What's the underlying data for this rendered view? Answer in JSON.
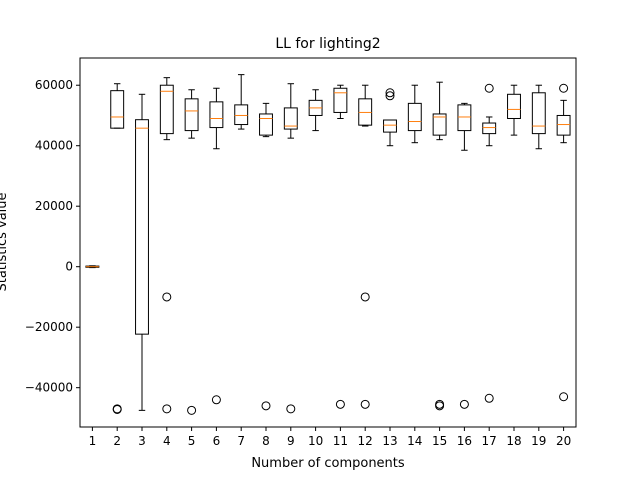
{
  "chart_data": {
    "type": "box",
    "title": "LL for lighting2",
    "xlabel": "Number of components",
    "ylabel": "Statistics value",
    "ylim": [
      -53000,
      69000
    ],
    "yticks": [
      -40000,
      -20000,
      0,
      20000,
      40000,
      60000
    ],
    "ytick_labels": [
      "−40000",
      "−20000",
      "0",
      "20000",
      "40000",
      "60000"
    ],
    "categories": [
      "1",
      "2",
      "3",
      "4",
      "5",
      "6",
      "7",
      "8",
      "9",
      "10",
      "11",
      "12",
      "13",
      "14",
      "15",
      "16",
      "17",
      "18",
      "19",
      "20"
    ],
    "colors": {
      "box": "#000000",
      "median": "#ff7f0e",
      "flier": "#000000"
    },
    "boxes": [
      {
        "label": "1",
        "whislo": -300,
        "q1": -200,
        "med": 0,
        "q3": 200,
        "whishi": 300,
        "fliers": []
      },
      {
        "label": "2",
        "whislo": 45800,
        "q1": 45800,
        "med": 49500,
        "q3": 58200,
        "whishi": 60500,
        "fliers": [
          -47000,
          -47200
        ]
      },
      {
        "label": "3",
        "whislo": -47500,
        "q1": -22300,
        "med": 45800,
        "q3": 48600,
        "whishi": 57000,
        "fliers": []
      },
      {
        "label": "4",
        "whislo": 42000,
        "q1": 44000,
        "med": 58000,
        "q3": 60000,
        "whishi": 62500,
        "fliers": [
          -10000,
          -47000
        ]
      },
      {
        "label": "5",
        "whislo": 42500,
        "q1": 45000,
        "med": 51500,
        "q3": 55500,
        "whishi": 58500,
        "fliers": [
          -47500
        ]
      },
      {
        "label": "6",
        "whislo": 39000,
        "q1": 46000,
        "med": 49000,
        "q3": 54500,
        "whishi": 59000,
        "fliers": [
          -44000
        ]
      },
      {
        "label": "7",
        "whislo": 45500,
        "q1": 47000,
        "med": 50000,
        "q3": 53500,
        "whishi": 63500,
        "fliers": []
      },
      {
        "label": "8",
        "whislo": 43000,
        "q1": 43500,
        "med": 49000,
        "q3": 50500,
        "whishi": 54000,
        "fliers": [
          -46000
        ]
      },
      {
        "label": "9",
        "whislo": 42500,
        "q1": 45500,
        "med": 46500,
        "q3": 52500,
        "whishi": 60500,
        "fliers": [
          -47000
        ]
      },
      {
        "label": "10",
        "whislo": 45000,
        "q1": 50000,
        "med": 52500,
        "q3": 55000,
        "whishi": 58500,
        "fliers": []
      },
      {
        "label": "11",
        "whislo": 49000,
        "q1": 51000,
        "med": 57500,
        "q3": 59000,
        "whishi": 60000,
        "fliers": [
          -45500
        ]
      },
      {
        "label": "12",
        "whislo": 46500,
        "q1": 46800,
        "med": 51000,
        "q3": 55500,
        "whishi": 60000,
        "fliers": [
          -10000,
          -45500
        ]
      },
      {
        "label": "13",
        "whislo": 40000,
        "q1": 44500,
        "med": 46800,
        "q3": 48500,
        "whishi": 48500,
        "fliers": [
          56500,
          57500
        ]
      },
      {
        "label": "14",
        "whislo": 41000,
        "q1": 45000,
        "med": 48000,
        "q3": 54000,
        "whishi": 60000,
        "fliers": []
      },
      {
        "label": "15",
        "whislo": 42000,
        "q1": 43500,
        "med": 49500,
        "q3": 50500,
        "whishi": 61000,
        "fliers": [
          -45500,
          -46000
        ]
      },
      {
        "label": "16",
        "whislo": 38500,
        "q1": 45000,
        "med": 49500,
        "q3": 53500,
        "whishi": 54000,
        "fliers": [
          -45500
        ]
      },
      {
        "label": "17",
        "whislo": 40000,
        "q1": 44000,
        "med": 46000,
        "q3": 47500,
        "whishi": 49500,
        "fliers": [
          59000,
          -43500
        ]
      },
      {
        "label": "18",
        "whislo": 43500,
        "q1": 49000,
        "med": 52000,
        "q3": 57000,
        "whishi": 60000,
        "fliers": []
      },
      {
        "label": "19",
        "whislo": 39000,
        "q1": 44000,
        "med": 46500,
        "q3": 57500,
        "whishi": 60000,
        "fliers": []
      },
      {
        "label": "20",
        "whislo": 41000,
        "q1": 43500,
        "med": 47000,
        "q3": 50000,
        "whishi": 55000,
        "fliers": [
          59000,
          -43000
        ]
      }
    ]
  }
}
